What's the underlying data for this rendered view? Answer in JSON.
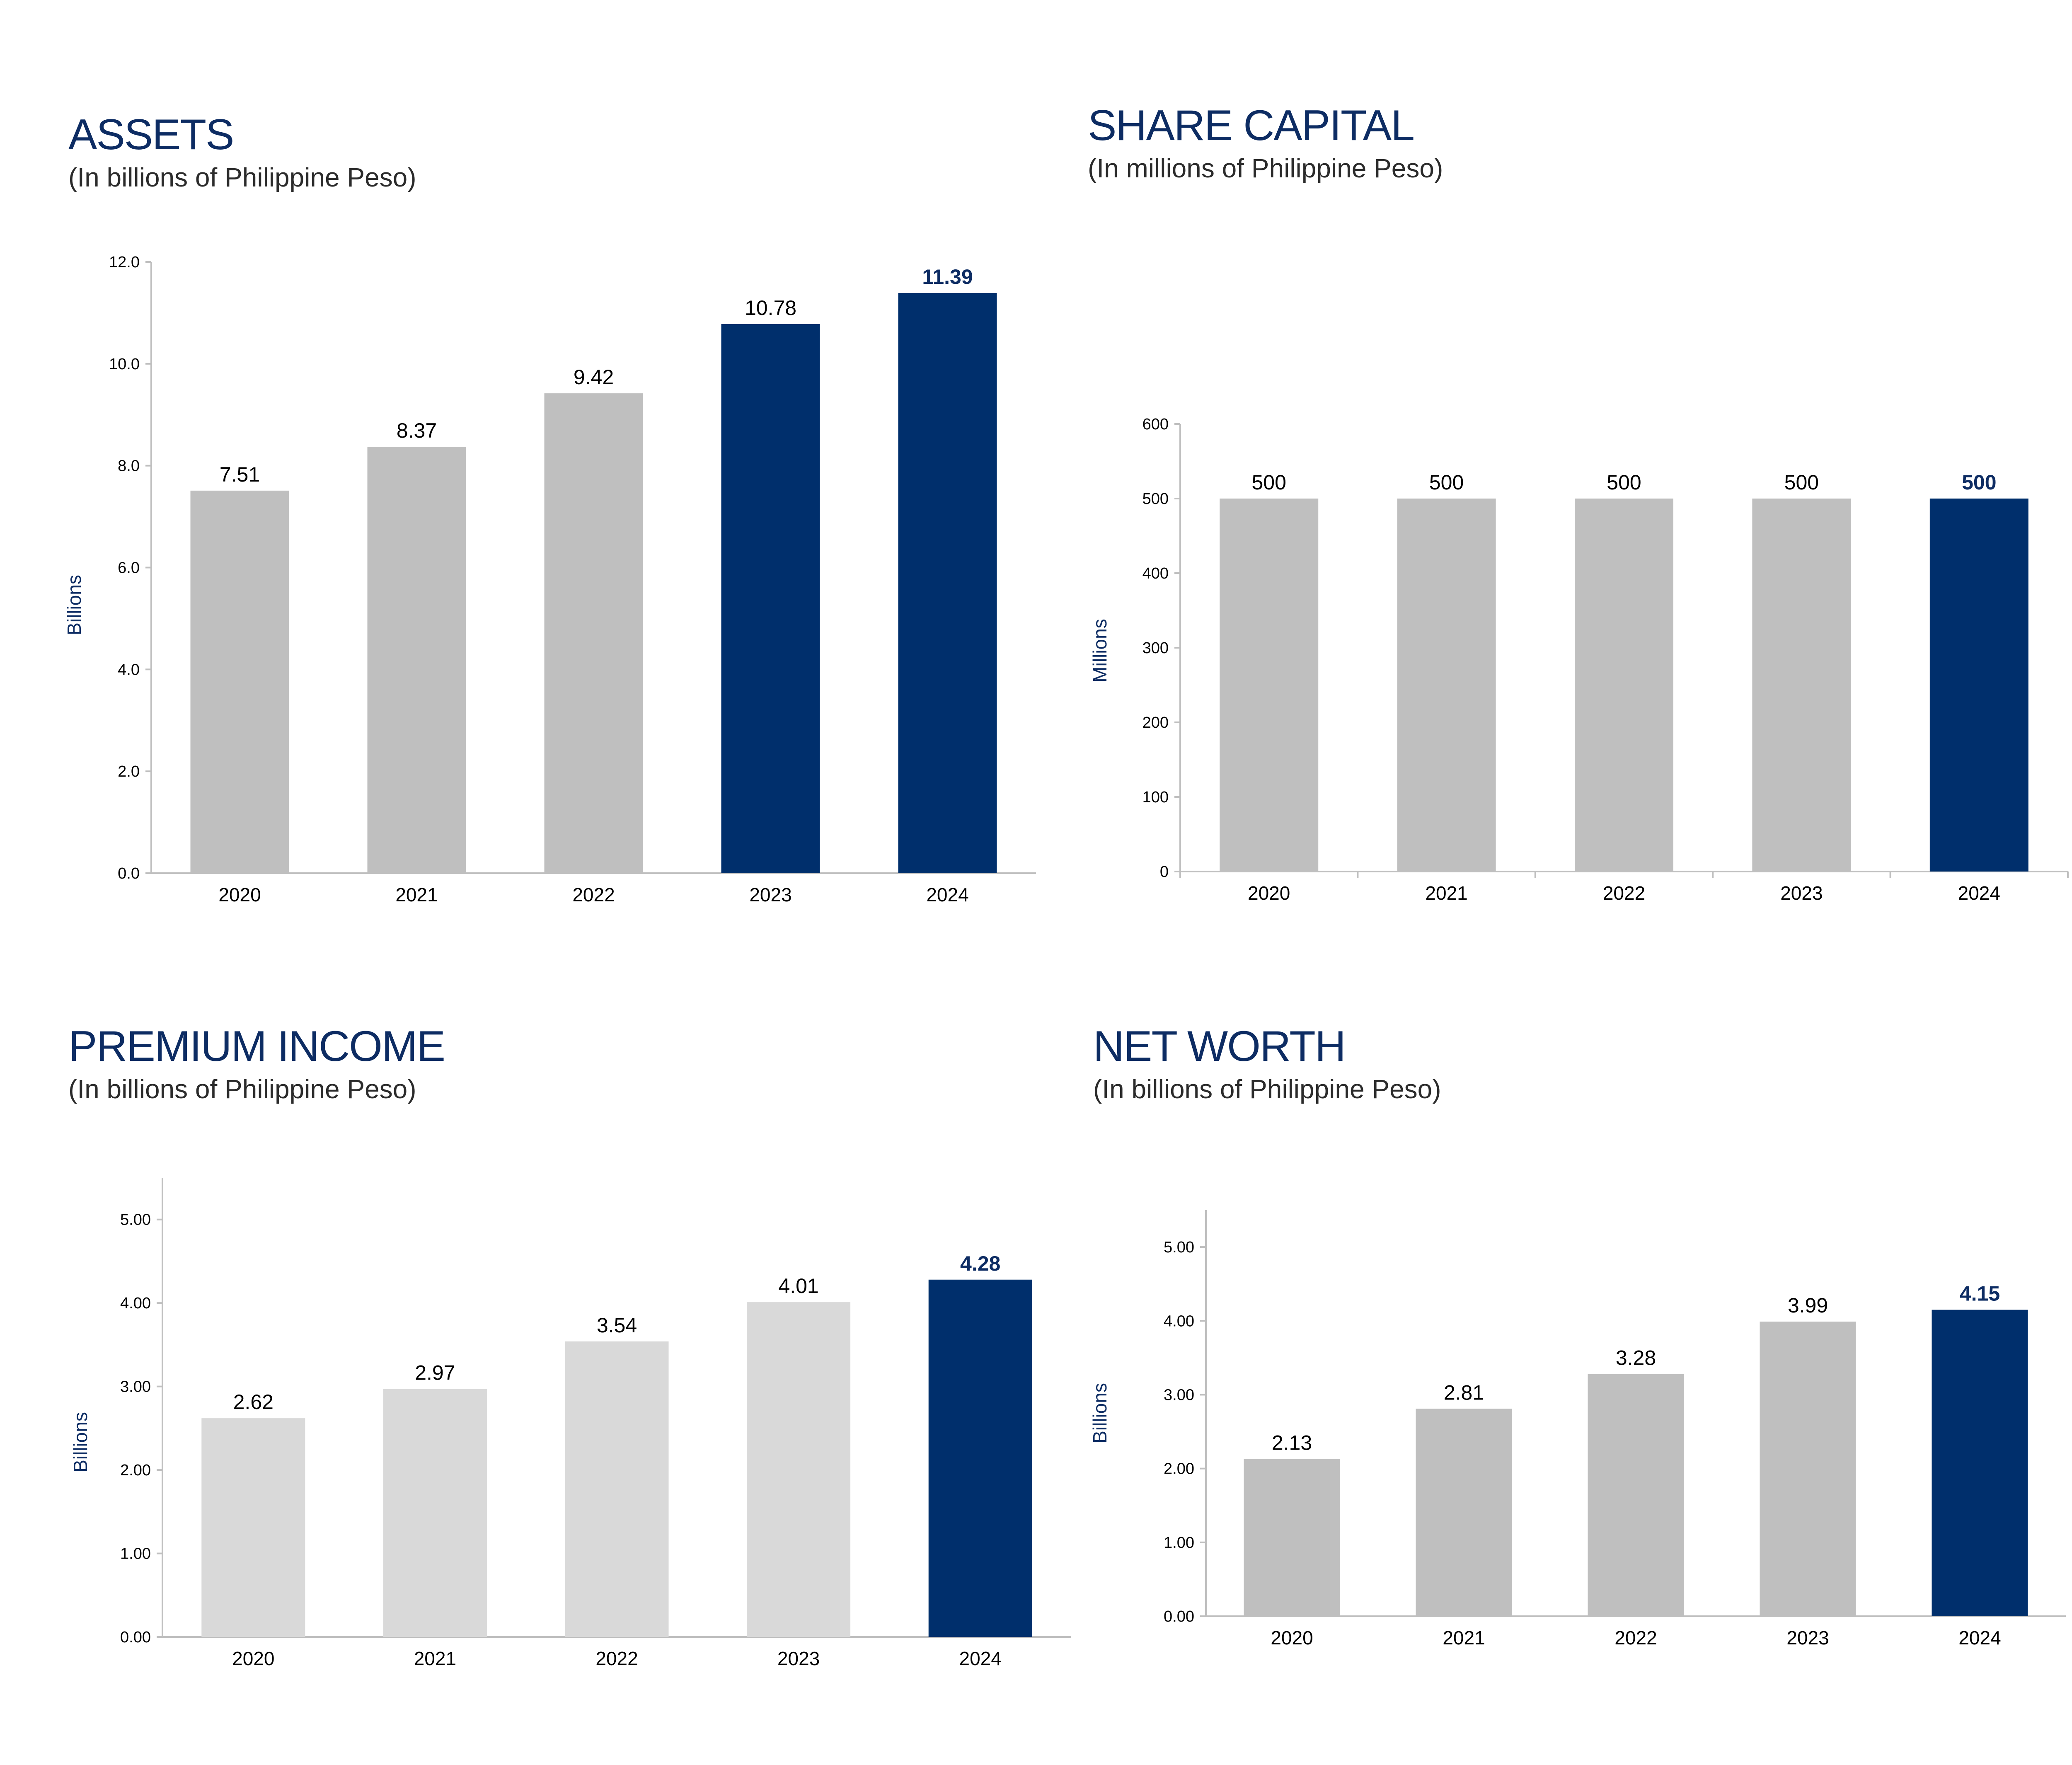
{
  "colors": {
    "highlight": "#002f6c",
    "bar_gray": "#bfbfbf",
    "bar_light": "#d9d9d9",
    "title": "#0d2c63"
  },
  "chart_data": [
    {
      "type": "bar",
      "title": "ASSETS",
      "subtitle": "(In billions of Philippine Peso)",
      "xlabel": "",
      "ylabel": "Billions",
      "categories": [
        "2020",
        "2021",
        "2022",
        "2023",
        "2024"
      ],
      "values": [
        7.51,
        8.37,
        9.42,
        10.78,
        11.39
      ],
      "value_labels": [
        "7.51",
        "8.37",
        "9.42",
        "10.78",
        "11.39"
      ],
      "ylim": [
        0,
        12
      ],
      "yticks": [
        0,
        2,
        4,
        6,
        8,
        10,
        12
      ],
      "ytick_labels": [
        "0.0",
        "2.0",
        "4.0",
        "6.0",
        "8.0",
        "10.0",
        "12.0"
      ],
      "bar_colors": [
        "gray",
        "gray",
        "gray",
        "highlight",
        "highlight"
      ],
      "emphasized_label": 4,
      "x_tick_marks": false
    },
    {
      "type": "bar",
      "title": "SHARE CAPITAL",
      "subtitle": "(In millions of Philippine Peso)",
      "xlabel": "",
      "ylabel": "Millions",
      "categories": [
        "2020",
        "2021",
        "2022",
        "2023",
        "2024"
      ],
      "values": [
        500,
        500,
        500,
        500,
        500
      ],
      "value_labels": [
        "500",
        "500",
        "500",
        "500",
        "500"
      ],
      "ylim": [
        0,
        600
      ],
      "yticks": [
        0,
        100,
        200,
        300,
        400,
        500,
        600
      ],
      "ytick_labels": [
        "0",
        "100",
        "200",
        "300",
        "400",
        "500",
        "600"
      ],
      "bar_colors": [
        "gray",
        "gray",
        "gray",
        "gray",
        "highlight"
      ],
      "emphasized_label": 4,
      "x_tick_marks": true
    },
    {
      "type": "bar",
      "title": "PREMIUM INCOME",
      "subtitle": "(In billions of Philippine Peso)",
      "xlabel": "",
      "ylabel": "Billions",
      "categories": [
        "2020",
        "2021",
        "2022",
        "2023",
        "2024"
      ],
      "values": [
        2.62,
        2.97,
        3.54,
        4.01,
        4.28
      ],
      "value_labels": [
        "2.62",
        "2.97",
        "3.54",
        "4.01",
        "4.28"
      ],
      "ylim": [
        0,
        5.5
      ],
      "yticks": [
        0,
        1,
        2,
        3,
        4,
        5
      ],
      "ytick_labels": [
        "0.00",
        "1.00",
        "2.00",
        "3.00",
        "4.00",
        "5.00"
      ],
      "bar_colors": [
        "light",
        "light",
        "light",
        "light",
        "highlight"
      ],
      "emphasized_label": 4,
      "x_tick_marks": false
    },
    {
      "type": "bar",
      "title": "NET WORTH",
      "subtitle": "(In billions of Philippine Peso)",
      "xlabel": "",
      "ylabel": "Billions",
      "categories": [
        "2020",
        "2021",
        "2022",
        "2023",
        "2024"
      ],
      "values": [
        2.13,
        2.81,
        3.28,
        3.99,
        4.15
      ],
      "value_labels": [
        "2.13",
        "2.81",
        "3.28",
        "3.99",
        "4.15"
      ],
      "ylim": [
        0,
        5.5
      ],
      "yticks": [
        0,
        1,
        2,
        3,
        4,
        5
      ],
      "ytick_labels": [
        "0.00",
        "1.00",
        "2.00",
        "3.00",
        "4.00",
        "5.00"
      ],
      "bar_colors": [
        "gray",
        "gray",
        "gray",
        "gray",
        "highlight"
      ],
      "emphasized_label": 4,
      "x_tick_marks": false
    }
  ]
}
